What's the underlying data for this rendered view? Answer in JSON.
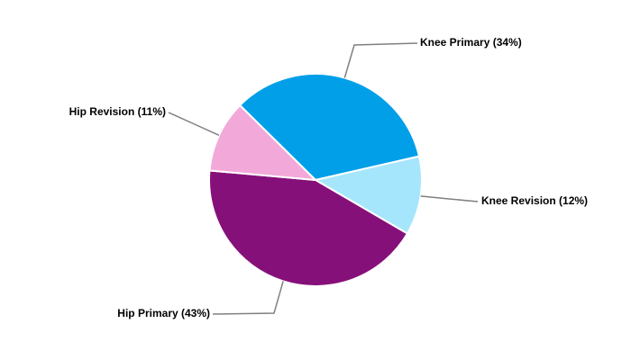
{
  "chart_data": {
    "type": "pie",
    "categories": [
      "Knee Primary (34%)",
      "Knee Revision (12%)",
      "Hip Primary (43%)",
      "Hip Revision (11%)"
    ],
    "values": [
      34,
      12,
      43,
      11
    ],
    "colors": [
      "#009fe8",
      "#a6e6fc",
      "#86107a",
      "#f2a9d9"
    ]
  }
}
